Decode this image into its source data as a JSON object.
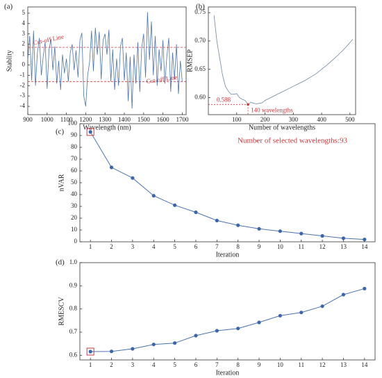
{
  "chart_data": [
    {
      "type": "line",
      "panel_label": "(a)",
      "x_label": "Wavelength (nm)",
      "y_label": "Stablity",
      "color": "#4a72b0",
      "x": [
        900,
        910,
        920,
        930,
        940,
        950,
        960,
        970,
        980,
        990,
        1000,
        1010,
        1020,
        1030,
        1040,
        1050,
        1060,
        1070,
        1080,
        1090,
        1100,
        1110,
        1120,
        1130,
        1140,
        1150,
        1160,
        1170,
        1180,
        1190,
        1200,
        1210,
        1220,
        1230,
        1240,
        1250,
        1260,
        1270,
        1280,
        1290,
        1300,
        1310,
        1320,
        1330,
        1340,
        1350,
        1360,
        1370,
        1380,
        1390,
        1400,
        1410,
        1420,
        1430,
        1440,
        1450,
        1460,
        1470,
        1480,
        1490,
        1500,
        1510,
        1520,
        1530,
        1540,
        1550,
        1560,
        1570,
        1580,
        1590,
        1600,
        1610,
        1620,
        1630,
        1640,
        1650,
        1660,
        1670,
        1680,
        1690,
        1700
      ],
      "values": [
        0.5,
        2.8,
        -1.5,
        3.3,
        -2.0,
        1.2,
        2.6,
        -1.0,
        0.8,
        2.2,
        -2.3,
        1.5,
        2.5,
        -0.5,
        1.8,
        -1.8,
        0.4,
        -2.4,
        1.0,
        -0.8,
        0.6,
        -1.6,
        1.2,
        2.0,
        -0.5,
        1.4,
        -1.2,
        2.4,
        3.1,
        -3.0,
        -4.0,
        -1.0,
        0.3,
        3.3,
        -0.6,
        3.6,
        1.0,
        3.2,
        -1.4,
        2.4,
        3.0,
        1.0,
        3.4,
        -1.6,
        1.5,
        -2.4,
        0.6,
        -2.0,
        1.8,
        2.6,
        -1.5,
        1.2,
        -3.5,
        0.8,
        -4.2,
        1.0,
        -1.8,
        2.2,
        -2.6,
        1.6,
        3.0,
        -1.2,
        5.1,
        0.5,
        4.2,
        -1.0,
        2.8,
        -2.0,
        1.5,
        -0.6,
        2.4,
        -1.8,
        0.8,
        2.6,
        -2.6,
        1.2,
        -1.4,
        2.0,
        -2.8,
        0.4,
        -1.6
      ],
      "xlim": [
        900,
        1720
      ],
      "xticks": [
        900,
        1000,
        1100,
        1200,
        1300,
        1400,
        1500,
        1600,
        1700
      ],
      "ylim": [
        -4.8,
        5.6
      ],
      "yticks": [
        -4,
        -3,
        -2,
        -1,
        0,
        1,
        2,
        3,
        4,
        5
      ],
      "cutoff_lines": [
        1.7,
        -1.6
      ],
      "annotations": [
        "Cut-off Line",
        "Cut-off Line"
      ]
    },
    {
      "type": "line",
      "panel_label": "(b)",
      "x_label": "Number of wavelengths",
      "y_label": "RMSEP",
      "color": "#6f86a3",
      "x": [
        20,
        30,
        40,
        50,
        60,
        70,
        80,
        90,
        100,
        110,
        120,
        130,
        140,
        150,
        160,
        170,
        180,
        190,
        200,
        220,
        240,
        260,
        280,
        300,
        320,
        340,
        360,
        380,
        400,
        420,
        440,
        460,
        480,
        500,
        510
      ],
      "values": [
        0.745,
        0.7,
        0.67,
        0.64,
        0.62,
        0.612,
        0.606,
        0.606,
        0.607,
        0.6,
        0.597,
        0.595,
        0.588,
        0.592,
        0.59,
        0.589,
        0.59,
        0.591,
        0.595,
        0.6,
        0.605,
        0.61,
        0.615,
        0.62,
        0.625,
        0.63,
        0.636,
        0.642,
        0.65,
        0.658,
        0.667,
        0.676,
        0.686,
        0.697,
        0.703
      ],
      "xlim": [
        0,
        520
      ],
      "xticks": [
        100,
        200,
        300,
        400,
        500
      ],
      "ylim": [
        0.57,
        0.76
      ],
      "yticks": [
        {
          "value": 0.6,
          "label": "0.60"
        },
        0.65,
        {
          "value": 0.7,
          "label": "0.70"
        },
        0.75
      ],
      "highlight": {
        "x": 140,
        "y": 0.588,
        "label": "140 wavelengths"
      }
    },
    {
      "type": "line",
      "panel_label": "(c)",
      "x_label": "Iteration",
      "y_label": "nVAR",
      "color": "#4a72b0",
      "markers": true,
      "x": [
        1,
        2,
        3,
        4,
        5,
        6,
        7,
        8,
        9,
        10,
        11,
        12,
        13,
        14
      ],
      "values": [
        93,
        63,
        54,
        39,
        31,
        25,
        18,
        14,
        11,
        9,
        7,
        5,
        3,
        2
      ],
      "xlim": [
        0.5,
        14.5
      ],
      "xticks": [
        1,
        2,
        3,
        4,
        5,
        6,
        7,
        8,
        9,
        10,
        11,
        12,
        13,
        14
      ],
      "ylim": [
        0,
        100
      ],
      "yticks": [
        0,
        10,
        20,
        30,
        40,
        50,
        60,
        70,
        80,
        90,
        100
      ],
      "highlight_index": 0,
      "annotation": "Number of selected wavelengths:93"
    },
    {
      "type": "line",
      "panel_label": "(d)",
      "x_label": "Iteration",
      "y_label": "RMESCV",
      "color": "#4a72b0",
      "markers": true,
      "x": [
        1,
        2,
        3,
        4,
        5,
        6,
        7,
        8,
        9,
        10,
        11,
        12,
        13,
        14
      ],
      "values": [
        0.616,
        0.617,
        0.628,
        0.647,
        0.653,
        0.685,
        0.706,
        0.716,
        0.742,
        0.771,
        0.785,
        0.812,
        0.862,
        0.888
      ],
      "xlim": [
        0.5,
        14.5
      ],
      "xticks": [
        1,
        2,
        3,
        4,
        5,
        6,
        7,
        8,
        9,
        10,
        11,
        12,
        13,
        14
      ],
      "ylim": [
        0.58,
        1.0
      ],
      "yticks": [
        0.6,
        0.7,
        0.8,
        0.9,
        {
          "value": 1.0,
          "label": "1.0"
        }
      ],
      "highlight_index": 0
    }
  ]
}
